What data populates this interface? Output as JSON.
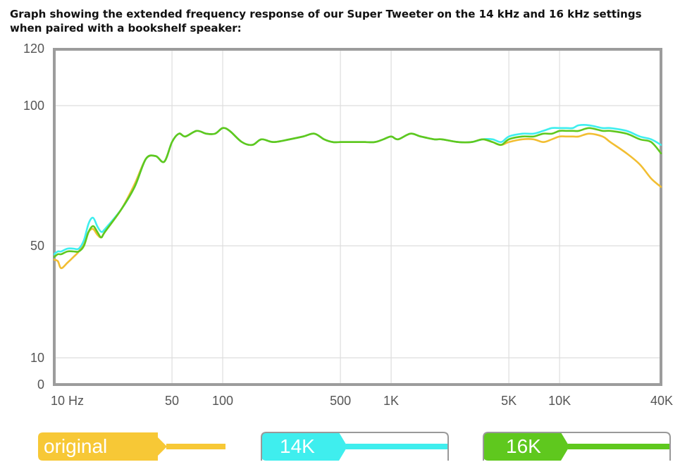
{
  "caption": "Graph showing the extended frequency response of our Super Tweeter on the 14 kHz and 16 kHz settings when paired with a bookshelf speaker:",
  "chart_data": {
    "type": "line",
    "xlabel": "",
    "ylabel": "",
    "x_scale": "log",
    "xlim": [
      10,
      40000
    ],
    "ylim": [
      0,
      120
    ],
    "grid": true,
    "x_ticks": [
      {
        "value": 10,
        "label": "10 Hz"
      },
      {
        "value": 50,
        "label": "50"
      },
      {
        "value": 100,
        "label": "100"
      },
      {
        "value": 500,
        "label": "500"
      },
      {
        "value": 1000,
        "label": "1K"
      },
      {
        "value": 5000,
        "label": "5K"
      },
      {
        "value": 10000,
        "label": "10K"
      },
      {
        "value": 40000,
        "label": "40K"
      }
    ],
    "y_ticks": [
      {
        "value": 0,
        "label": "0"
      },
      {
        "value": 10,
        "label": "10"
      },
      {
        "value": 50,
        "label": "50"
      },
      {
        "value": 100,
        "label": "100"
      },
      {
        "value": 120,
        "label": "120"
      }
    ],
    "legend_position": "bottom",
    "series": [
      {
        "name": "original",
        "color": "#F2BE32",
        "points": [
          [
            10,
            45
          ],
          [
            10.5,
            44.5
          ],
          [
            11,
            42
          ],
          [
            12,
            44
          ],
          [
            13,
            46
          ],
          [
            14,
            48
          ],
          [
            15,
            51
          ],
          [
            16,
            55
          ],
          [
            17,
            56
          ],
          [
            18,
            54
          ],
          [
            19,
            53
          ],
          [
            20,
            55
          ],
          [
            25,
            63
          ],
          [
            30,
            72
          ],
          [
            35,
            81
          ],
          [
            40,
            82
          ],
          [
            45,
            80
          ],
          [
            50,
            87
          ],
          [
            55,
            90
          ],
          [
            60,
            89
          ],
          [
            70,
            91
          ],
          [
            80,
            90
          ],
          [
            90,
            90
          ],
          [
            100,
            92
          ],
          [
            110,
            91
          ],
          [
            130,
            87
          ],
          [
            150,
            86
          ],
          [
            170,
            88
          ],
          [
            200,
            87
          ],
          [
            250,
            88
          ],
          [
            300,
            89
          ],
          [
            350,
            90
          ],
          [
            400,
            88
          ],
          [
            450,
            87
          ],
          [
            500,
            87
          ],
          [
            600,
            87
          ],
          [
            700,
            87
          ],
          [
            800,
            87
          ],
          [
            900,
            88
          ],
          [
            1000,
            89
          ],
          [
            1100,
            88
          ],
          [
            1300,
            90
          ],
          [
            1500,
            89
          ],
          [
            1800,
            88
          ],
          [
            2000,
            88
          ],
          [
            2500,
            87
          ],
          [
            3000,
            87
          ],
          [
            3500,
            88
          ],
          [
            4000,
            87
          ],
          [
            4500,
            86
          ],
          [
            5000,
            87
          ],
          [
            6000,
            88
          ],
          [
            7000,
            88
          ],
          [
            8000,
            87
          ],
          [
            9000,
            88
          ],
          [
            10000,
            89
          ],
          [
            11000,
            89
          ],
          [
            12000,
            89
          ],
          [
            13000,
            89
          ],
          [
            15000,
            90
          ],
          [
            18000,
            89
          ],
          [
            20000,
            87
          ],
          [
            25000,
            83
          ],
          [
            30000,
            79
          ],
          [
            35000,
            74
          ],
          [
            40000,
            71
          ]
        ]
      },
      {
        "name": "14K",
        "color": "#3FEEEE",
        "points": [
          [
            10,
            47
          ],
          [
            10.5,
            48
          ],
          [
            11,
            48
          ],
          [
            12,
            49
          ],
          [
            13,
            49
          ],
          [
            14,
            49
          ],
          [
            15,
            52
          ],
          [
            16,
            58
          ],
          [
            17,
            60
          ],
          [
            18,
            57
          ],
          [
            19,
            55
          ],
          [
            20,
            56
          ],
          [
            25,
            63
          ],
          [
            30,
            71
          ],
          [
            35,
            81
          ],
          [
            40,
            82
          ],
          [
            45,
            80
          ],
          [
            50,
            87
          ],
          [
            55,
            90
          ],
          [
            60,
            89
          ],
          [
            70,
            91
          ],
          [
            80,
            90
          ],
          [
            90,
            90
          ],
          [
            100,
            92
          ],
          [
            110,
            91
          ],
          [
            130,
            87
          ],
          [
            150,
            86
          ],
          [
            170,
            88
          ],
          [
            200,
            87
          ],
          [
            250,
            88
          ],
          [
            300,
            89
          ],
          [
            350,
            90
          ],
          [
            400,
            88
          ],
          [
            450,
            87
          ],
          [
            500,
            87
          ],
          [
            600,
            87
          ],
          [
            700,
            87
          ],
          [
            800,
            87
          ],
          [
            900,
            88
          ],
          [
            1000,
            89
          ],
          [
            1100,
            88
          ],
          [
            1300,
            90
          ],
          [
            1500,
            89
          ],
          [
            1800,
            88
          ],
          [
            2000,
            88
          ],
          [
            2500,
            87
          ],
          [
            3000,
            87
          ],
          [
            3500,
            88
          ],
          [
            4000,
            88
          ],
          [
            4500,
            87
          ],
          [
            5000,
            89
          ],
          [
            6000,
            90
          ],
          [
            7000,
            90
          ],
          [
            8000,
            91
          ],
          [
            9000,
            92
          ],
          [
            10000,
            92
          ],
          [
            11000,
            92
          ],
          [
            12000,
            92
          ],
          [
            13000,
            93
          ],
          [
            15000,
            93
          ],
          [
            18000,
            92
          ],
          [
            20000,
            92
          ],
          [
            25000,
            91
          ],
          [
            30000,
            89
          ],
          [
            35000,
            88
          ],
          [
            40000,
            86
          ]
        ]
      },
      {
        "name": "16K",
        "color": "#5FC81E",
        "points": [
          [
            10,
            46
          ],
          [
            10.5,
            47
          ],
          [
            11,
            47
          ],
          [
            12,
            48
          ],
          [
            13,
            48
          ],
          [
            14,
            48
          ],
          [
            15,
            50
          ],
          [
            16,
            55
          ],
          [
            17,
            57
          ],
          [
            18,
            55
          ],
          [
            19,
            53
          ],
          [
            20,
            55
          ],
          [
            25,
            63
          ],
          [
            30,
            71
          ],
          [
            35,
            81
          ],
          [
            40,
            82
          ],
          [
            45,
            80
          ],
          [
            50,
            87
          ],
          [
            55,
            90
          ],
          [
            60,
            89
          ],
          [
            70,
            91
          ],
          [
            80,
            90
          ],
          [
            90,
            90
          ],
          [
            100,
            92
          ],
          [
            110,
            91
          ],
          [
            130,
            87
          ],
          [
            150,
            86
          ],
          [
            170,
            88
          ],
          [
            200,
            87
          ],
          [
            250,
            88
          ],
          [
            300,
            89
          ],
          [
            350,
            90
          ],
          [
            400,
            88
          ],
          [
            450,
            87
          ],
          [
            500,
            87
          ],
          [
            600,
            87
          ],
          [
            700,
            87
          ],
          [
            800,
            87
          ],
          [
            900,
            88
          ],
          [
            1000,
            89
          ],
          [
            1100,
            88
          ],
          [
            1300,
            90
          ],
          [
            1500,
            89
          ],
          [
            1800,
            88
          ],
          [
            2000,
            88
          ],
          [
            2500,
            87
          ],
          [
            3000,
            87
          ],
          [
            3500,
            88
          ],
          [
            4000,
            87
          ],
          [
            4500,
            86
          ],
          [
            5000,
            88
          ],
          [
            6000,
            89
          ],
          [
            7000,
            89
          ],
          [
            8000,
            90
          ],
          [
            9000,
            90
          ],
          [
            10000,
            91
          ],
          [
            11000,
            91
          ],
          [
            12000,
            91
          ],
          [
            13000,
            91
          ],
          [
            15000,
            92
          ],
          [
            18000,
            91
          ],
          [
            20000,
            91
          ],
          [
            25000,
            90
          ],
          [
            30000,
            88
          ],
          [
            35000,
            87
          ],
          [
            40000,
            83
          ]
        ]
      }
    ]
  }
}
